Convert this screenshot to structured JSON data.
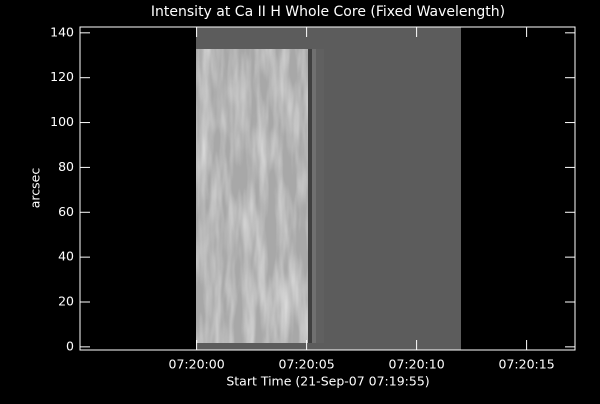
{
  "chart_data": {
    "type": "image",
    "title": "Intensity at Ca II H Whole Core (Fixed Wavelength)",
    "xlabel": "Start Time (21-Sep-07 07:19:55)",
    "ylabel": "arcsec",
    "xlim": [
      -0.3,
      22.2
    ],
    "xticks": [
      {
        "value": 5,
        "label": "07:20:00"
      },
      {
        "value": 10,
        "label": "07:20:05"
      },
      {
        "value": 15,
        "label": "07:20:10"
      },
      {
        "value": 20,
        "label": "07:20:15"
      }
    ],
    "ylim": [
      -1.4,
      142.6
    ],
    "yticks": [
      0,
      20,
      40,
      60,
      80,
      100,
      120,
      140
    ]
  }
}
